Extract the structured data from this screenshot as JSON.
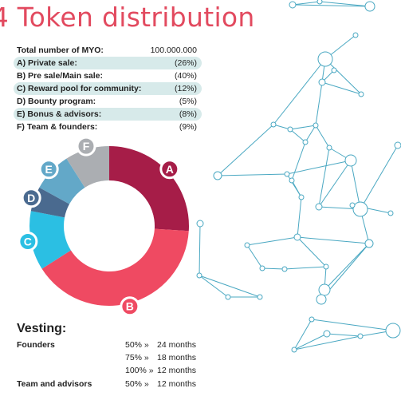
{
  "title": {
    "number": "4",
    "text": "Token distribution"
  },
  "distribution": {
    "total_label": "Total number of MYO:",
    "total_value": "100.000.000",
    "items": [
      {
        "label": "A) Private sale:",
        "value": "(26%)"
      },
      {
        "label": "B) Pre sale/Main sale:",
        "value": "(40%)"
      },
      {
        "label": "C) Reward pool for community:",
        "value": "(12%)"
      },
      {
        "label": "D) Bounty program:",
        "value": "(5%)"
      },
      {
        "label": "E) Bonus & advisors:",
        "value": "(8%)"
      },
      {
        "label": "F) Team & founders:",
        "value": "(9%)"
      }
    ]
  },
  "chart_data": {
    "type": "pie",
    "subtype": "donut",
    "categories": [
      "A",
      "B",
      "C",
      "D",
      "E",
      "F"
    ],
    "values": [
      26,
      40,
      12,
      5,
      8,
      9
    ],
    "colors": [
      "#a61d48",
      "#ef4a62",
      "#2bbfe3",
      "#4a6a8f",
      "#63a8c8",
      "#abaeb2"
    ],
    "slice_labels": [
      "A",
      "B",
      "C",
      "D",
      "E",
      "F"
    ],
    "start_angle_deg": 0,
    "direction": "clockwise"
  },
  "vesting": {
    "title": "Vesting:",
    "rows": [
      {
        "who": "Founders",
        "pct": "50% »",
        "duration": "24 months"
      },
      {
        "who": "",
        "pct": "75% »",
        "duration": "18 months"
      },
      {
        "who": "",
        "pct": "100% »",
        "duration": "12 months"
      },
      {
        "who": "Team and advisors",
        "pct": "50% »",
        "duration": "12 months"
      }
    ]
  },
  "colors": {
    "title": "#e24a5f",
    "highlight": "#d7eaea",
    "network": "#4aa8c2"
  }
}
